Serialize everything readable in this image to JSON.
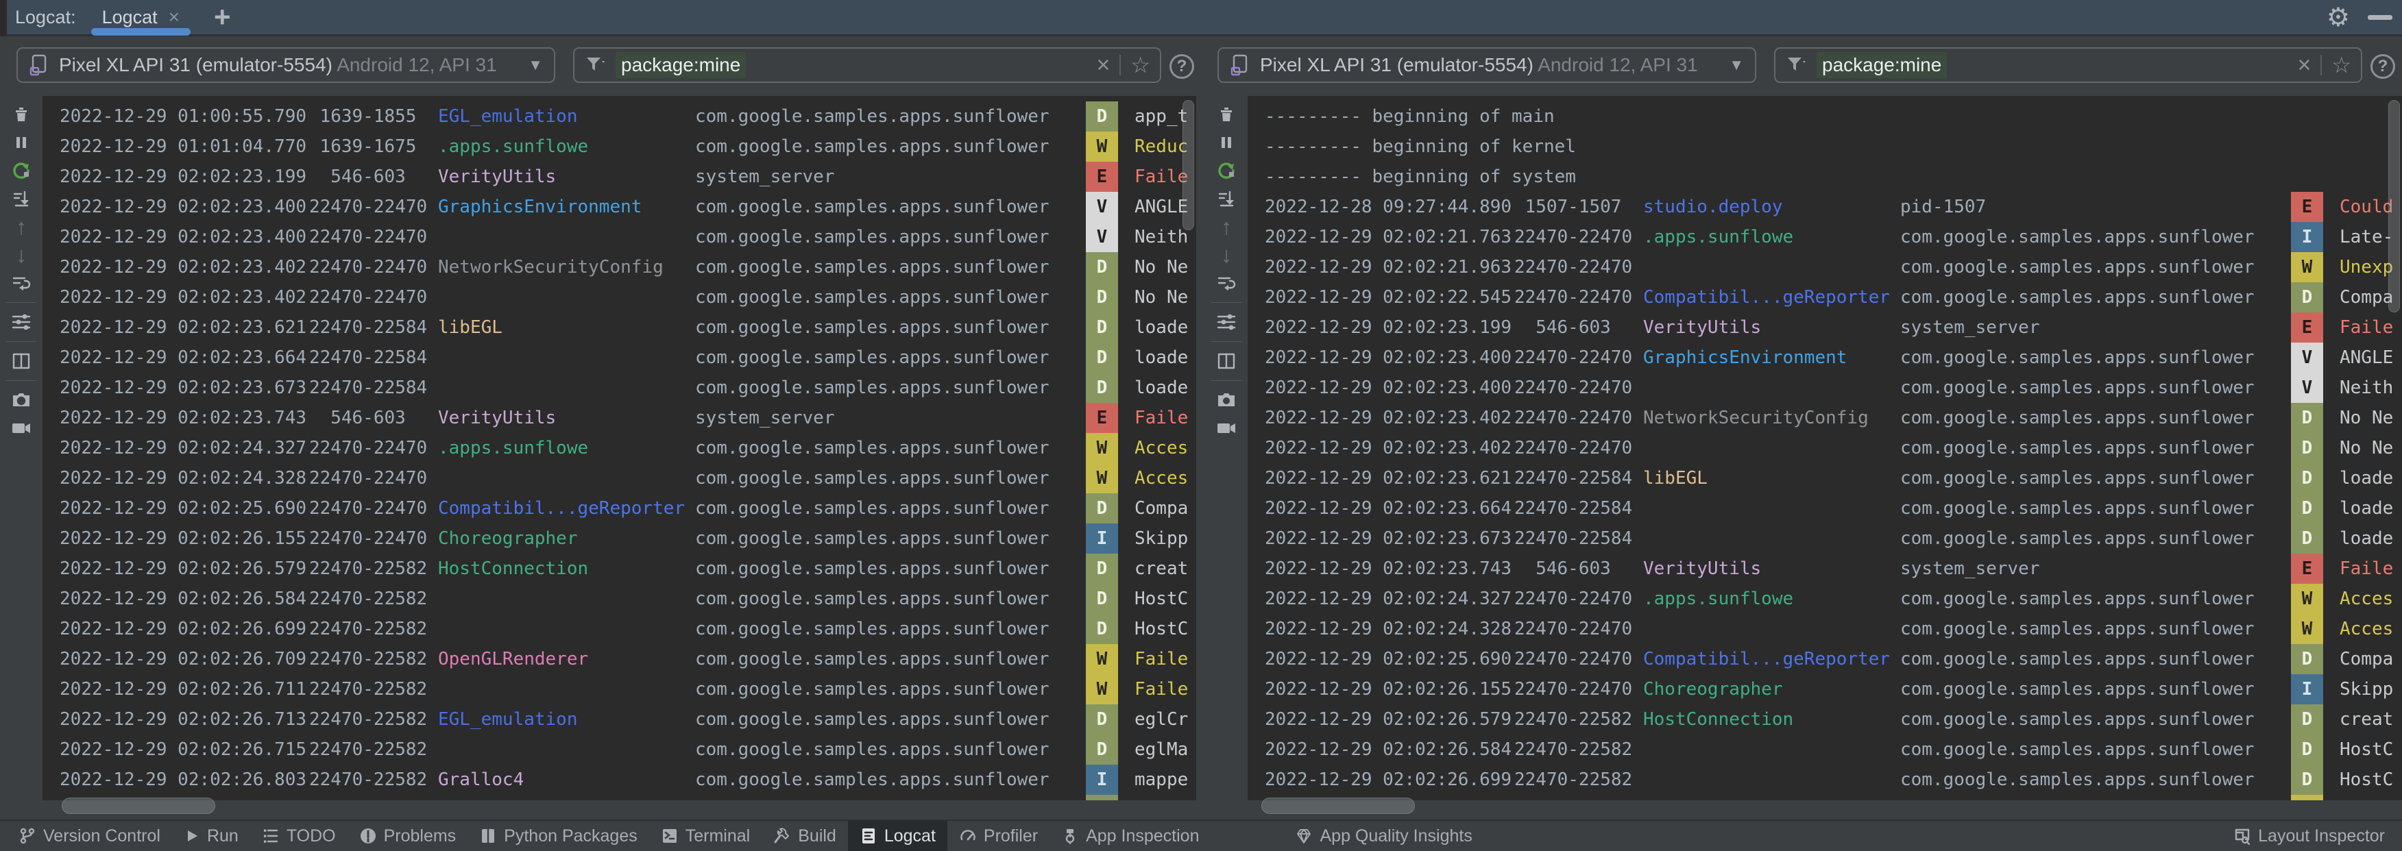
{
  "tab_bar": {
    "window_label": "Logcat:",
    "tab_label": "Logcat",
    "close": "×",
    "add": "+"
  },
  "device": {
    "name": "Pixel XL API 31 (emulator-5554)",
    "info": " Android 12, API 31"
  },
  "filter": {
    "query": "package:mine",
    "clear": "×",
    "star": "☆",
    "help": "?"
  },
  "side_toolbar_icons": [
    "clear-logcat",
    "pause",
    "restart-logcat",
    "scroll-to-end",
    "previous-occurrence",
    "next-occurrence",
    "soft-wrap",
    "logcat-settings",
    "split-panels",
    "screenshot",
    "screen-record"
  ],
  "colors": {
    "accent_blue": "#5189CE",
    "chrome": "#3C3F41",
    "header": "#3D4B59",
    "log_background": "#2B2B2B",
    "restart_green": "#57A64A",
    "filter_highlight": "#3B4C3E"
  },
  "levels": {
    "D": {
      "bg": "#87975F",
      "fg": "#F0F0E4",
      "msg": "#C8CACE"
    },
    "I": {
      "bg": "#45708F",
      "fg": "#D9E4ED",
      "msg": "#C8CACE"
    },
    "W": {
      "bg": "#C6BA4A",
      "fg": "#26261E",
      "msg": "#D6C94E"
    },
    "E": {
      "bg": "#CE655D",
      "fg": "#261B1A",
      "msg": "#F07A6E"
    },
    "V": {
      "bg": "#D8D8D8",
      "fg": "#222222",
      "msg": "#C8CACE"
    }
  },
  "tag_colors": {
    "EGL_emulation": "#4A6FE8",
    "studio.deploy": "#4D74EC",
    "Compatibil...geReporter": "#4D74EC",
    ".apps.sunflowe": "#3FB084",
    "Choreographer": "#3FB084",
    "HostConnection": "#3FB084",
    "VerityUtils": "#C9A8D6",
    "Gralloc4": "#C9A8D6",
    "GraphicsEnvironment": "#3FA3E8",
    "NetworkSecurityConfig": "#8F9499",
    "libEGL": "#DFBE8E",
    "OpenGLRenderer": "#E07BB4"
  },
  "panels": [
    {
      "rows": [
        {
          "t": "2022-12-29 01:00:55.790",
          "p": "1639-1855",
          "tag": "EGL_emulation",
          "proc": "com.google.samples.apps.sunflower",
          "level": "D",
          "msg": "app_t"
        },
        {
          "t": "2022-12-29 01:01:04.770",
          "p": "1639-1675",
          "tag": ".apps.sunflowe",
          "proc": "com.google.samples.apps.sunflower",
          "level": "W",
          "msg": "Reduc"
        },
        {
          "t": "2022-12-29 02:02:23.199",
          "p": "546-603",
          "tag": "VerityUtils",
          "proc": "system_server",
          "level": "E",
          "msg": "Faile"
        },
        {
          "t": "2022-12-29 02:02:23.400",
          "p": "22470-22470",
          "tag": "GraphicsEnvironment",
          "proc": "com.google.samples.apps.sunflower",
          "level": "V",
          "msg": "ANGLE"
        },
        {
          "t": "2022-12-29 02:02:23.400",
          "p": "22470-22470",
          "tag": "",
          "proc": "com.google.samples.apps.sunflower",
          "level": "V",
          "msg": "Neith"
        },
        {
          "t": "2022-12-29 02:02:23.402",
          "p": "22470-22470",
          "tag": "NetworkSecurityConfig",
          "proc": "com.google.samples.apps.sunflower",
          "level": "D",
          "msg": "No Ne"
        },
        {
          "t": "2022-12-29 02:02:23.402",
          "p": "22470-22470",
          "tag": "",
          "proc": "com.google.samples.apps.sunflower",
          "level": "D",
          "msg": "No Ne"
        },
        {
          "t": "2022-12-29 02:02:23.621",
          "p": "22470-22584",
          "tag": "libEGL",
          "proc": "com.google.samples.apps.sunflower",
          "level": "D",
          "msg": "loade"
        },
        {
          "t": "2022-12-29 02:02:23.664",
          "p": "22470-22584",
          "tag": "",
          "proc": "com.google.samples.apps.sunflower",
          "level": "D",
          "msg": "loade"
        },
        {
          "t": "2022-12-29 02:02:23.673",
          "p": "22470-22584",
          "tag": "",
          "proc": "com.google.samples.apps.sunflower",
          "level": "D",
          "msg": "loade"
        },
        {
          "t": "2022-12-29 02:02:23.743",
          "p": "546-603",
          "tag": "VerityUtils",
          "proc": "system_server",
          "level": "E",
          "msg": "Faile"
        },
        {
          "t": "2022-12-29 02:02:24.327",
          "p": "22470-22470",
          "tag": ".apps.sunflowe",
          "proc": "com.google.samples.apps.sunflower",
          "level": "W",
          "msg": "Acces"
        },
        {
          "t": "2022-12-29 02:02:24.328",
          "p": "22470-22470",
          "tag": "",
          "proc": "com.google.samples.apps.sunflower",
          "level": "W",
          "msg": "Acces"
        },
        {
          "t": "2022-12-29 02:02:25.690",
          "p": "22470-22470",
          "tag": "Compatibil...geReporter",
          "proc": "com.google.samples.apps.sunflower",
          "level": "D",
          "msg": "Compa"
        },
        {
          "t": "2022-12-29 02:02:26.155",
          "p": "22470-22470",
          "tag": "Choreographer",
          "proc": "com.google.samples.apps.sunflower",
          "level": "I",
          "msg": "Skipp"
        },
        {
          "t": "2022-12-29 02:02:26.579",
          "p": "22470-22582",
          "tag": "HostConnection",
          "proc": "com.google.samples.apps.sunflower",
          "level": "D",
          "msg": "creat"
        },
        {
          "t": "2022-12-29 02:02:26.584",
          "p": "22470-22582",
          "tag": "",
          "proc": "com.google.samples.apps.sunflower",
          "level": "D",
          "msg": "HostC"
        },
        {
          "t": "2022-12-29 02:02:26.699",
          "p": "22470-22582",
          "tag": "",
          "proc": "com.google.samples.apps.sunflower",
          "level": "D",
          "msg": "HostC"
        },
        {
          "t": "2022-12-29 02:02:26.709",
          "p": "22470-22582",
          "tag": "OpenGLRenderer",
          "proc": "com.google.samples.apps.sunflower",
          "level": "W",
          "msg": "Faile"
        },
        {
          "t": "2022-12-29 02:02:26.711",
          "p": "22470-22582",
          "tag": "",
          "proc": "com.google.samples.apps.sunflower",
          "level": "W",
          "msg": "Faile"
        },
        {
          "t": "2022-12-29 02:02:26.713",
          "p": "22470-22582",
          "tag": "EGL_emulation",
          "proc": "com.google.samples.apps.sunflower",
          "level": "D",
          "msg": "eglCr"
        },
        {
          "t": "2022-12-29 02:02:26.715",
          "p": "22470-22582",
          "tag": "",
          "proc": "com.google.samples.apps.sunflower",
          "level": "D",
          "msg": "eglMa"
        },
        {
          "t": "2022-12-29 02:02:26.803",
          "p": "22470-22582",
          "tag": "Gralloc4",
          "proc": "com.google.samples.apps.sunflower",
          "level": "I",
          "msg": "mappe"
        },
        {
          "t": "",
          "p": "",
          "tag": "",
          "proc": "",
          "level": "D",
          "msg": ""
        }
      ]
    },
    {
      "rows": [
        {
          "sep": "--------- beginning of main"
        },
        {
          "sep": "--------- beginning of kernel"
        },
        {
          "sep": "--------- beginning of system"
        },
        {
          "t": "2022-12-28 09:27:44.890",
          "p": "1507-1507",
          "tag": "studio.deploy",
          "proc": "pid-1507",
          "level": "E",
          "msg": "Could"
        },
        {
          "t": "2022-12-29 02:02:21.763",
          "p": "22470-22470",
          "tag": ".apps.sunflowe",
          "proc": "com.google.samples.apps.sunflower",
          "level": "I",
          "msg": "Late-"
        },
        {
          "t": "2022-12-29 02:02:21.963",
          "p": "22470-22470",
          "tag": "",
          "proc": "com.google.samples.apps.sunflower",
          "level": "W",
          "msg": "Unexp"
        },
        {
          "t": "2022-12-29 02:02:22.545",
          "p": "22470-22470",
          "tag": "Compatibil...geReporter",
          "proc": "com.google.samples.apps.sunflower",
          "level": "D",
          "msg": "Compa"
        },
        {
          "t": "2022-12-29 02:02:23.199",
          "p": "546-603",
          "tag": "VerityUtils",
          "proc": "system_server",
          "level": "E",
          "msg": "Faile"
        },
        {
          "t": "2022-12-29 02:02:23.400",
          "p": "22470-22470",
          "tag": "GraphicsEnvironment",
          "proc": "com.google.samples.apps.sunflower",
          "level": "V",
          "msg": "ANGLE"
        },
        {
          "t": "2022-12-29 02:02:23.400",
          "p": "22470-22470",
          "tag": "",
          "proc": "com.google.samples.apps.sunflower",
          "level": "V",
          "msg": "Neith"
        },
        {
          "t": "2022-12-29 02:02:23.402",
          "p": "22470-22470",
          "tag": "NetworkSecurityConfig",
          "proc": "com.google.samples.apps.sunflower",
          "level": "D",
          "msg": "No Ne"
        },
        {
          "t": "2022-12-29 02:02:23.402",
          "p": "22470-22470",
          "tag": "",
          "proc": "com.google.samples.apps.sunflower",
          "level": "D",
          "msg": "No Ne"
        },
        {
          "t": "2022-12-29 02:02:23.621",
          "p": "22470-22584",
          "tag": "libEGL",
          "proc": "com.google.samples.apps.sunflower",
          "level": "D",
          "msg": "loade"
        },
        {
          "t": "2022-12-29 02:02:23.664",
          "p": "22470-22584",
          "tag": "",
          "proc": "com.google.samples.apps.sunflower",
          "level": "D",
          "msg": "loade"
        },
        {
          "t": "2022-12-29 02:02:23.673",
          "p": "22470-22584",
          "tag": "",
          "proc": "com.google.samples.apps.sunflower",
          "level": "D",
          "msg": "loade"
        },
        {
          "t": "2022-12-29 02:02:23.743",
          "p": "546-603",
          "tag": "VerityUtils",
          "proc": "system_server",
          "level": "E",
          "msg": "Faile"
        },
        {
          "t": "2022-12-29 02:02:24.327",
          "p": "22470-22470",
          "tag": ".apps.sunflowe",
          "proc": "com.google.samples.apps.sunflower",
          "level": "W",
          "msg": "Acces"
        },
        {
          "t": "2022-12-29 02:02:24.328",
          "p": "22470-22470",
          "tag": "",
          "proc": "com.google.samples.apps.sunflower",
          "level": "W",
          "msg": "Acces"
        },
        {
          "t": "2022-12-29 02:02:25.690",
          "p": "22470-22470",
          "tag": "Compatibil...geReporter",
          "proc": "com.google.samples.apps.sunflower",
          "level": "D",
          "msg": "Compa"
        },
        {
          "t": "2022-12-29 02:02:26.155",
          "p": "22470-22470",
          "tag": "Choreographer",
          "proc": "com.google.samples.apps.sunflower",
          "level": "I",
          "msg": "Skipp"
        },
        {
          "t": "2022-12-29 02:02:26.579",
          "p": "22470-22582",
          "tag": "HostConnection",
          "proc": "com.google.samples.apps.sunflower",
          "level": "D",
          "msg": "creat"
        },
        {
          "t": "2022-12-29 02:02:26.584",
          "p": "22470-22582",
          "tag": "",
          "proc": "com.google.samples.apps.sunflower",
          "level": "D",
          "msg": "HostC"
        },
        {
          "t": "2022-12-29 02:02:26.699",
          "p": "22470-22582",
          "tag": "",
          "proc": "com.google.samples.apps.sunflower",
          "level": "D",
          "msg": "HostC"
        },
        {
          "t": "",
          "p": "",
          "tag": "",
          "proc": "",
          "level": "W",
          "msg": ""
        }
      ]
    }
  ],
  "status_bar": {
    "items": [
      {
        "label": "Version Control"
      },
      {
        "label": "Run"
      },
      {
        "label": "TODO"
      },
      {
        "label": "Problems"
      },
      {
        "label": "Python Packages"
      },
      {
        "label": "Terminal"
      },
      {
        "label": "Build"
      },
      {
        "label": "Logcat"
      },
      {
        "label": "Profiler"
      },
      {
        "label": "App Inspection"
      },
      {
        "label": "App Quality Insights"
      }
    ],
    "right_item": {
      "label": "Layout Inspector"
    }
  }
}
